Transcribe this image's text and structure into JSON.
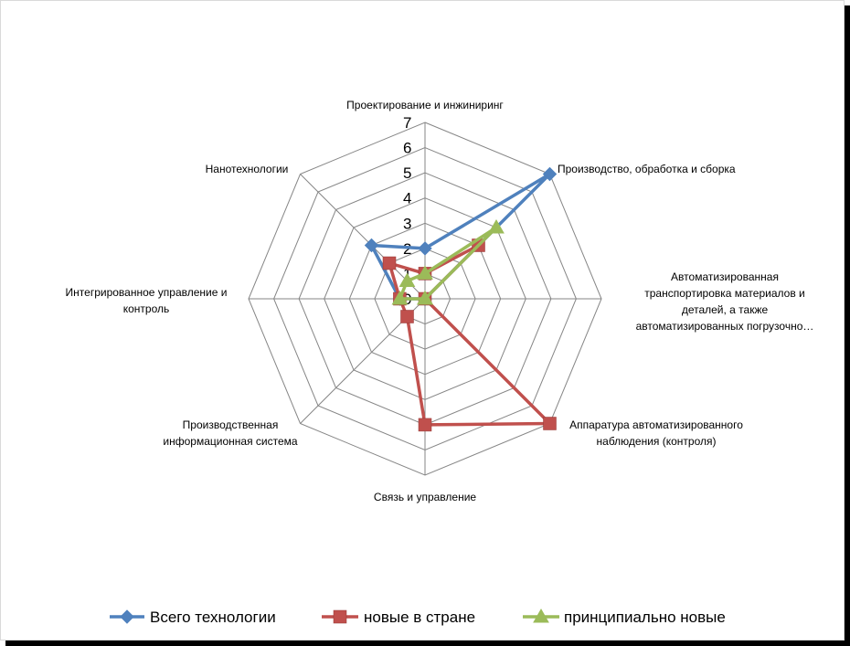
{
  "chart_data": {
    "type": "radar",
    "categories": [
      "Проектирование и инжиниринг",
      "Производство, обработка и сборка",
      "Автоматизированная транспортировка материалов и деталей, а также автоматизированных погрузочно…",
      "Аппаратура автоматизированного наблюдения (контроля)",
      "Связь и управление",
      "Производственная информационная система",
      "Интегрированное управление и контроль",
      "Нанотехнологии"
    ],
    "category_label_lines": [
      [
        "Проектирование и инжиниринг"
      ],
      [
        "Производство, обработка и сборка"
      ],
      [
        "Автоматизированная",
        "транспортировка материалов и",
        "деталей, а также",
        "автоматизированных погрузочно…"
      ],
      [
        "Аппаратура автоматизированного",
        "наблюдения (контроля)"
      ],
      [
        "Связь и управление"
      ],
      [
        "Производственная",
        "информационная система"
      ],
      [
        "Интегрированное управление и",
        "контроль"
      ],
      [
        "Нанотехнологии"
      ]
    ],
    "series": [
      {
        "name": "Всего технологии",
        "values": [
          2,
          7,
          0,
          0,
          0,
          0,
          1,
          3
        ],
        "color": "#4f81bd",
        "marker": "diamond"
      },
      {
        "name": "новые в стране",
        "values": [
          1,
          3,
          0,
          7,
          5,
          1,
          1,
          2
        ],
        "color": "#c0504d",
        "marker": "square"
      },
      {
        "name": "принципиально новые",
        "values": [
          1,
          4,
          0,
          0,
          0,
          0,
          1,
          1
        ],
        "color": "#9bbb59",
        "marker": "triangle"
      }
    ],
    "rlim": [
      0,
      7
    ],
    "ticks": [
      "0",
      "1",
      "2",
      "3",
      "4",
      "5",
      "6",
      "7"
    ],
    "grid": true,
    "legend_position": "bottom"
  }
}
